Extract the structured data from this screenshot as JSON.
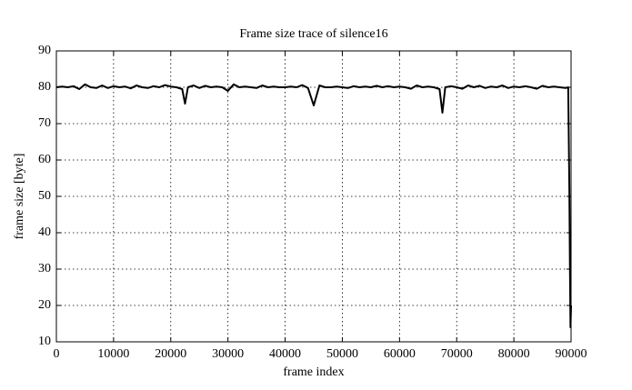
{
  "chart_data": {
    "type": "line",
    "title": "Frame size trace of silence16",
    "x_label": "frame index",
    "y_label": "frame size [byte]",
    "x": [
      0,
      1000,
      2000,
      3000,
      4000,
      5000,
      6000,
      7000,
      8000,
      9000,
      10000,
      11000,
      12000,
      13000,
      14000,
      15000,
      16000,
      17000,
      18000,
      19000,
      20000,
      21000,
      22000,
      22500,
      23000,
      24000,
      25000,
      26000,
      27000,
      28000,
      29000,
      30000,
      31000,
      32000,
      33000,
      34000,
      35000,
      36000,
      37000,
      38000,
      39000,
      40000,
      41000,
      42000,
      43000,
      44000,
      45000,
      46000,
      47000,
      48000,
      49000,
      50000,
      51000,
      52000,
      53000,
      54000,
      55000,
      56000,
      57000,
      58000,
      59000,
      60000,
      61000,
      62000,
      63000,
      64000,
      65000,
      66000,
      67000,
      67500,
      68000,
      69000,
      70000,
      71000,
      72000,
      73000,
      74000,
      75000,
      76000,
      77000,
      78000,
      79000,
      80000,
      81000,
      82000,
      83000,
      84000,
      85000,
      86000,
      87000,
      88000,
      89000,
      89500,
      89700,
      89800,
      89900,
      90000
    ],
    "series": [
      {
        "name": "frame size",
        "color": "#000000",
        "values": [
          80,
          80.2,
          80,
          80.3,
          79.5,
          80.8,
          80,
          79.8,
          80.5,
          79.8,
          80.3,
          80,
          80.2,
          79.7,
          80.5,
          80,
          79.8,
          80.3,
          80,
          80.6,
          80.2,
          80,
          79.5,
          75.5,
          80,
          80.5,
          79.8,
          80.4,
          80,
          80.2,
          80,
          79,
          80.8,
          80,
          80.2,
          80,
          79.8,
          80.5,
          80,
          80.2,
          80,
          80,
          80.2,
          80,
          80.6,
          79.8,
          75,
          80.5,
          80,
          80,
          80.2,
          80,
          79.8,
          80.3,
          80,
          80.2,
          80,
          80.4,
          80,
          80.3,
          80,
          80.2,
          80,
          79.6,
          80.5,
          80,
          80.2,
          80,
          79.5,
          73,
          80,
          80.3,
          80,
          79.6,
          80.5,
          80,
          80.4,
          79.8,
          80.2,
          80,
          80.5,
          79.8,
          80.2,
          80,
          80.3,
          80,
          79.6,
          80.4,
          80,
          80.2,
          80,
          79.8,
          80,
          52,
          31,
          14,
          20
        ]
      }
    ],
    "xlim": [
      0,
      90000
    ],
    "ylim": [
      10,
      90
    ],
    "xticks": [
      0,
      10000,
      20000,
      30000,
      40000,
      50000,
      60000,
      70000,
      80000,
      90000
    ],
    "yticks": [
      10,
      20,
      30,
      40,
      50,
      60,
      70,
      80,
      90
    ],
    "grid": true
  }
}
